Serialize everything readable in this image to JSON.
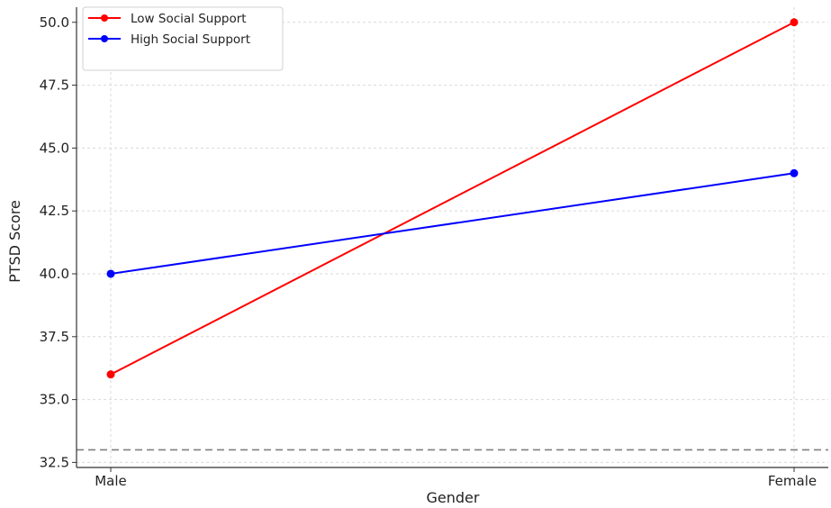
{
  "chart_data": {
    "type": "line",
    "title": "",
    "xlabel": "Gender",
    "ylabel": "PTSD Score",
    "categories": [
      "Male",
      "Female"
    ],
    "ylim": [
      32.3,
      50.6
    ],
    "yticks": [
      "32.5",
      "35.0",
      "37.5",
      "40.0",
      "42.5",
      "45.0",
      "47.5",
      "50.0"
    ],
    "grid": true,
    "legend_position": "top-left",
    "series": [
      {
        "name": "Low Social Support",
        "values": [
          36.0,
          50.0
        ],
        "color": "#ff0000"
      },
      {
        "name": "High Social Support",
        "values": [
          40.0,
          44.0
        ],
        "color": "#0000ff"
      }
    ],
    "reference_line": {
      "y": 33.0,
      "style": "dashed",
      "color": "#808080"
    }
  }
}
